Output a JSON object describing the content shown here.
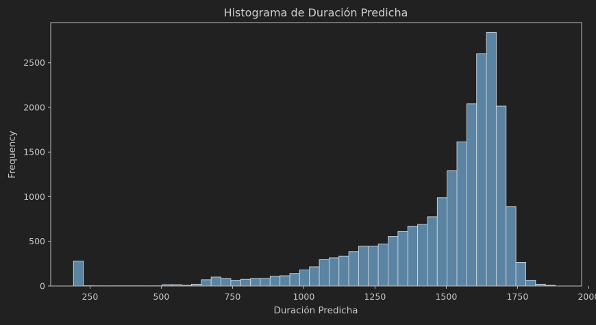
{
  "chart_data": {
    "type": "bar",
    "title": "Histograma de Duración Predicha",
    "xlabel": "Duración Predicha",
    "ylabel": "Frequency",
    "xlim": [
      112,
      1975
    ],
    "ylim": [
      0,
      2950
    ],
    "xticks": [
      250,
      500,
      750,
      1000,
      1250,
      1500,
      1750,
      2000
    ],
    "yticks": [
      0,
      500,
      1000,
      1500,
      2000,
      2500
    ],
    "bin_start": 192,
    "bin_width": 34.5,
    "values": [
      280,
      3,
      2,
      2,
      2,
      2,
      2,
      2,
      2,
      15,
      15,
      8,
      20,
      70,
      100,
      85,
      65,
      75,
      85,
      85,
      110,
      115,
      140,
      180,
      215,
      295,
      315,
      335,
      385,
      445,
      445,
      470,
      555,
      610,
      670,
      690,
      775,
      990,
      1290,
      1615,
      2040,
      2600,
      2840,
      2015,
      890,
      265,
      65,
      20,
      8
    ],
    "bar_color": "#5b84a3",
    "edge_color": "#c9d6e0",
    "background": "#212121",
    "grid": false,
    "legend": "none"
  }
}
